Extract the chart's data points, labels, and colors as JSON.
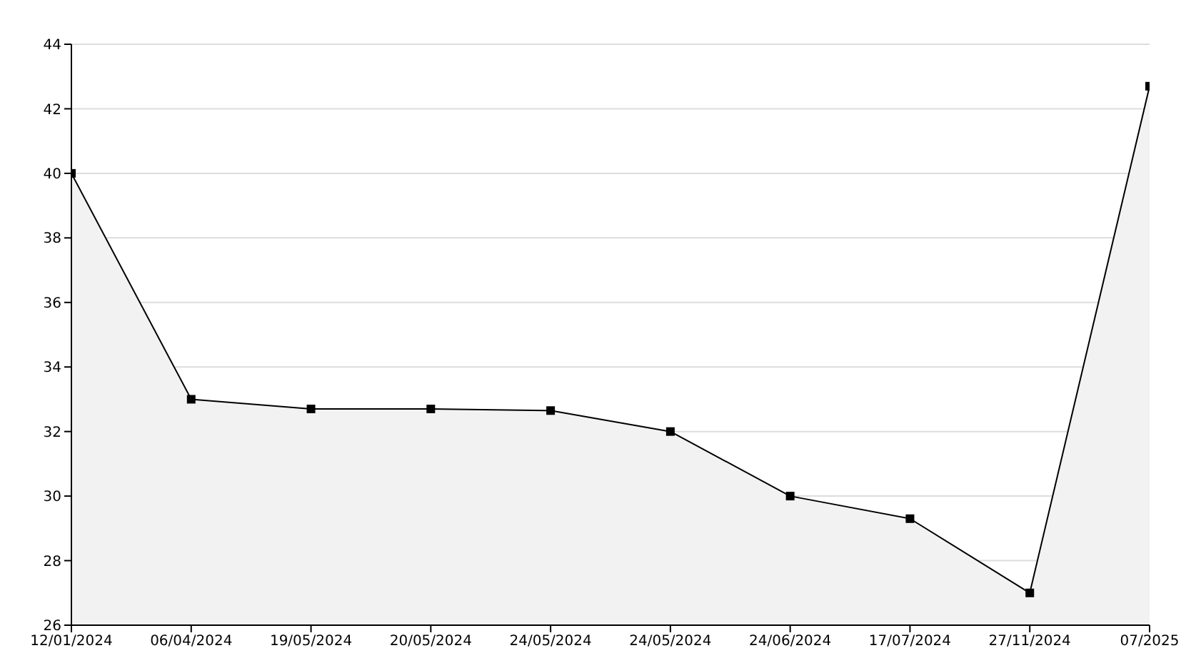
{
  "chart_data": {
    "type": "area",
    "categories": [
      "12/01/2024",
      "06/04/2024",
      "19/05/2024",
      "20/05/2024",
      "24/05/2024",
      "24/05/2024",
      "24/06/2024",
      "17/07/2024",
      "27/11/2024",
      "07/2025"
    ],
    "series": [
      {
        "color": "#000000",
        "values": [
          40,
          33,
          32.7,
          32.7,
          32.65,
          32,
          30,
          29.3,
          27,
          42.7
        ]
      }
    ],
    "ylim": [
      26,
      44
    ],
    "yticks": [
      26,
      28,
      30,
      32,
      34,
      36,
      38,
      40,
      42,
      44
    ],
    "grid": "y",
    "marker": "square",
    "line_style": "solid"
  }
}
